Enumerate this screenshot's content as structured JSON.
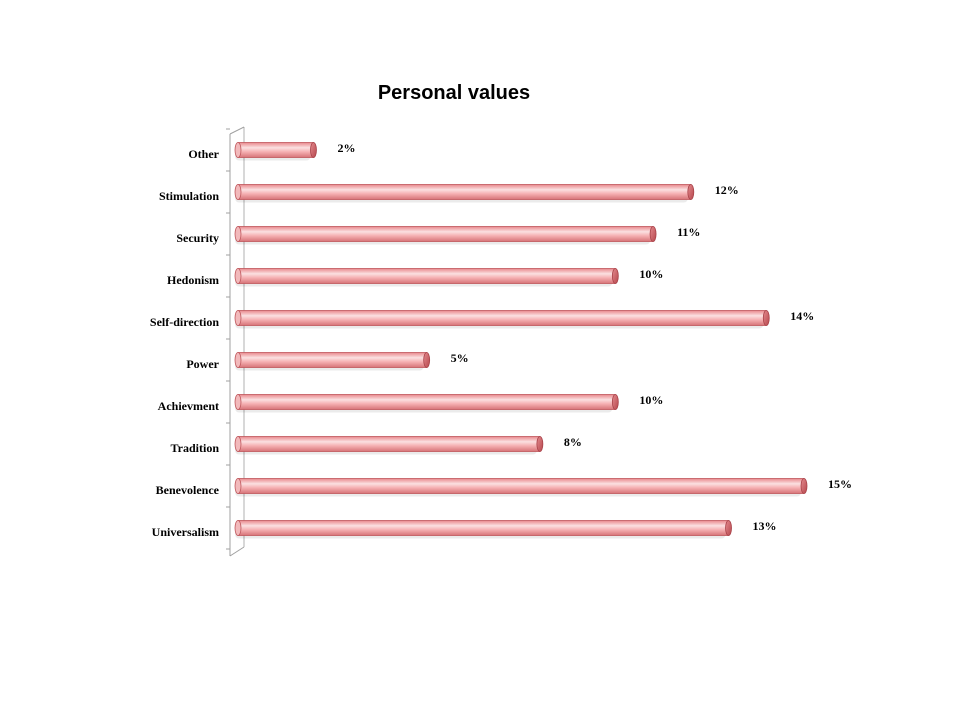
{
  "chart_data": {
    "type": "bar",
    "orientation": "horizontal",
    "title": "Personal values",
    "categories": [
      "Other",
      "Stimulation",
      "Security",
      "Hedonism",
      "Self-direction",
      "Power",
      "Achievment",
      "Tradition",
      "Benevolence",
      "Universalism"
    ],
    "values": [
      2,
      12,
      11,
      10,
      14,
      5,
      10,
      8,
      15,
      13
    ],
    "value_labels": [
      "2%",
      "12%",
      "11%",
      "10%",
      "14%",
      "5%",
      "10%",
      "8%",
      "15%",
      "13%"
    ],
    "xlim": [
      0,
      15
    ],
    "legend": "none",
    "grid": false,
    "colors": {
      "bar": "#f4a6a8",
      "bar_dark": "#c0575c",
      "bar_light": "#fbe3e4"
    }
  }
}
